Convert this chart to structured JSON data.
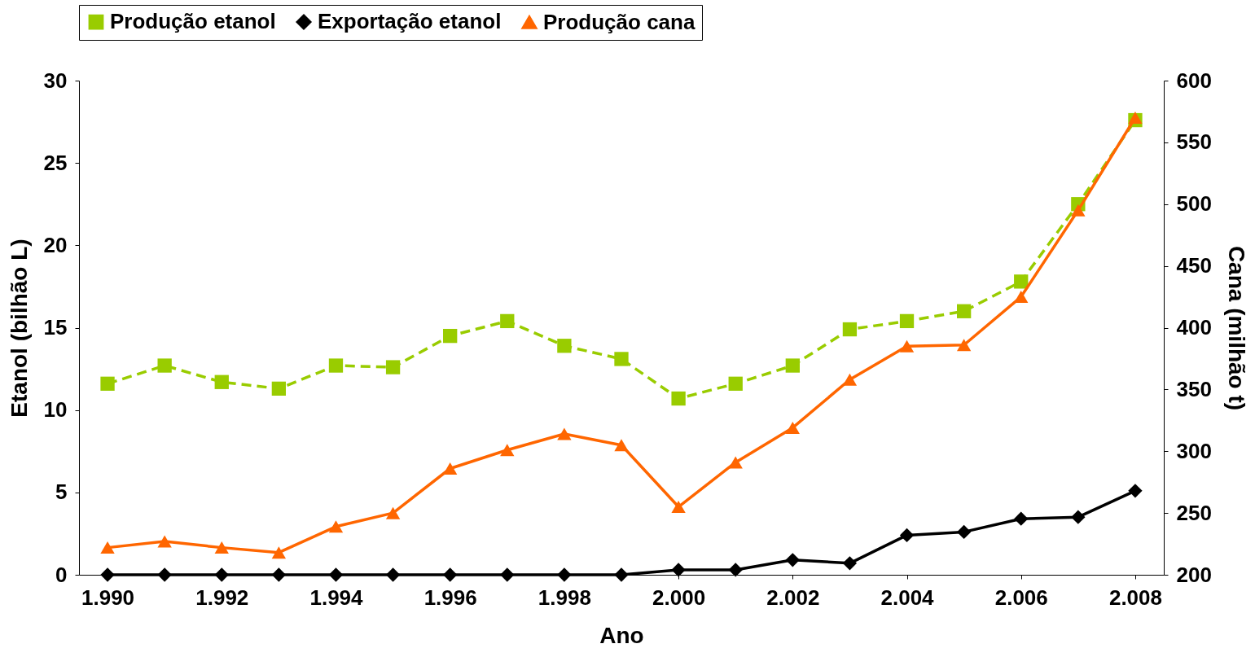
{
  "chart_data": {
    "type": "line",
    "xlabel": "Ano",
    "ylabel": "Etanol (bilhão L)",
    "y2label": "Cana (milhão t)",
    "x": [
      1990,
      1991,
      1992,
      1993,
      1994,
      1995,
      1996,
      1997,
      1998,
      1999,
      2000,
      2001,
      2002,
      2003,
      2004,
      2005,
      2006,
      2007,
      2008
    ],
    "series": [
      {
        "name": "Produção etanol",
        "color": "#99cc00",
        "marker": "square",
        "line_style": "dashed",
        "values": [
          11.6,
          12.7,
          11.7,
          11.3,
          12.7,
          12.6,
          14.5,
          15.4,
          13.9,
          13.1,
          10.7,
          11.6,
          12.7,
          14.9,
          15.4,
          16.0,
          17.8,
          22.5,
          27.6
        ]
      },
      {
        "name": "Exportação etanol",
        "color": "#000000",
        "marker": "diamond",
        "line_style": "solid",
        "values": [
          0,
          0,
          0,
          0,
          0,
          0,
          0,
          0,
          0,
          0,
          0.3,
          0.3,
          0.9,
          0.7,
          2.4,
          2.6,
          3.4,
          3.5,
          5.1
        ]
      },
      {
        "name": "Produção cana",
        "color": "#ff6600",
        "marker": "triangle",
        "line_style": "solid",
        "axis": "y2",
        "values": [
          222,
          227,
          222,
          218,
          239,
          250,
          286,
          301,
          314,
          305,
          255,
          291,
          319,
          358,
          385,
          386,
          425,
          495,
          570
        ]
      }
    ],
    "xlim": [
      1989.5,
      2008.5
    ],
    "xticks": [
      {
        "value": 1990,
        "label": "1.990"
      },
      {
        "value": 1992,
        "label": "1.992"
      },
      {
        "value": 1994,
        "label": "1.994"
      },
      {
        "value": 1996,
        "label": "1.996"
      },
      {
        "value": 1998,
        "label": "1.998"
      },
      {
        "value": 2000,
        "label": "2.000"
      },
      {
        "value": 2002,
        "label": "2.002"
      },
      {
        "value": 2004,
        "label": "2.004"
      },
      {
        "value": 2006,
        "label": "2.006"
      },
      {
        "value": 2008,
        "label": "2.008"
      }
    ],
    "ylim": [
      0,
      30
    ],
    "yticks": [
      0,
      5,
      10,
      15,
      20,
      25,
      30
    ],
    "y2lim": [
      200,
      600
    ],
    "y2ticks": [
      200,
      250,
      300,
      350,
      400,
      450,
      500,
      550,
      600
    ],
    "grid": false,
    "legend": "top"
  }
}
